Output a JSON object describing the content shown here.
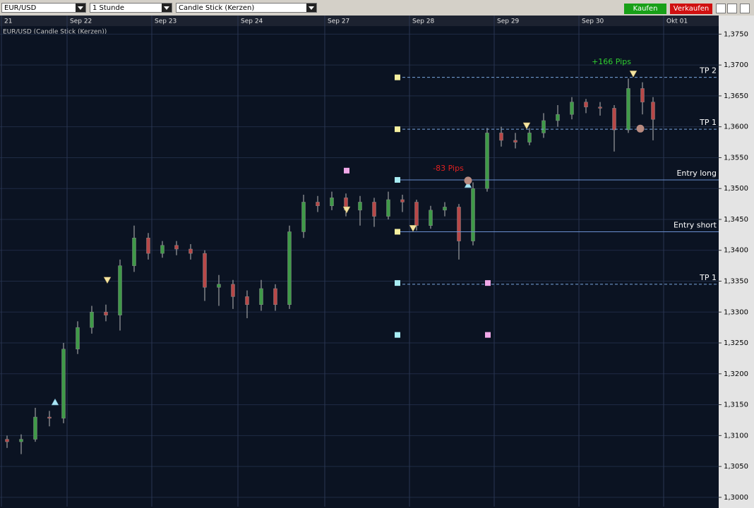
{
  "toolbar": {
    "symbol": "EUR/USD",
    "interval": "1 Stunde",
    "chart_style": "Candle Stick (Kerzen)",
    "buy": "Kaufen",
    "sell": "Verkaufen"
  },
  "chart_data": {
    "type": "candlestick",
    "title": "EUR/USD (Candle Stick (Kerzen))",
    "up_color": "#3f9a48",
    "down_color": "#b84848",
    "grid": true,
    "xlim": [
      0,
      203.6
    ],
    "ylim": [
      1.2985,
      1.3763
    ],
    "xticks": [
      {
        "value": 0.4,
        "label": "21"
      },
      {
        "value": 19,
        "label": "Sep 22"
      },
      {
        "value": 43,
        "label": "Sep 23"
      },
      {
        "value": 67.4,
        "label": "Sep 24"
      },
      {
        "value": 92,
        "label": "Sep 27"
      },
      {
        "value": 116,
        "label": "Sep 28"
      },
      {
        "value": 140,
        "label": "Sep 29"
      },
      {
        "value": 164,
        "label": "Sep 30"
      },
      {
        "value": 188,
        "label": "Okt 01"
      }
    ],
    "yticks": [
      {
        "value": 1.3,
        "label": "1,3000"
      },
      {
        "value": 1.305,
        "label": "1,3050"
      },
      {
        "value": 1.31,
        "label": "1,3100"
      },
      {
        "value": 1.315,
        "label": "1,3150"
      },
      {
        "value": 1.32,
        "label": "1,3200"
      },
      {
        "value": 1.325,
        "label": "1,3250"
      },
      {
        "value": 1.33,
        "label": "1,3300"
      },
      {
        "value": 1.335,
        "label": "1,3350"
      },
      {
        "value": 1.34,
        "label": "1,3400"
      },
      {
        "value": 1.345,
        "label": "1,3450"
      },
      {
        "value": 1.35,
        "label": "1,3500"
      },
      {
        "value": 1.355,
        "label": "1,3550"
      },
      {
        "value": 1.36,
        "label": "1,3600"
      },
      {
        "value": 1.365,
        "label": "1,3650"
      },
      {
        "value": 1.37,
        "label": "1,3700"
      },
      {
        "value": 1.375,
        "label": "1,3750"
      }
    ],
    "x": [
      2,
      6,
      10,
      14,
      18,
      22,
      26,
      30,
      34,
      38,
      42,
      46,
      50,
      54,
      58,
      62,
      66,
      70,
      74,
      78,
      82,
      86,
      90,
      94,
      98,
      102,
      106,
      110,
      114,
      118,
      122,
      126,
      130,
      134,
      138,
      142,
      146,
      150,
      154,
      158,
      162,
      166,
      170,
      174,
      178,
      182,
      185
    ],
    "open": [
      1.3094,
      1.309,
      1.3094,
      1.313,
      1.3128,
      1.324,
      1.3275,
      1.33,
      1.3295,
      1.3375,
      1.342,
      1.3395,
      1.3408,
      1.3402,
      1.3395,
      1.334,
      1.3345,
      1.3325,
      1.3312,
      1.3338,
      1.3312,
      1.343,
      1.3478,
      1.3472,
      1.3485,
      1.3465,
      1.3478,
      1.3455,
      1.3482,
      1.3478,
      1.344,
      1.3465,
      1.347,
      1.3415,
      1.35,
      1.359,
      1.3578,
      1.3575,
      1.359,
      1.361,
      1.362,
      1.364,
      1.3632,
      1.363,
      1.3595,
      1.3662,
      1.364
    ],
    "high": [
      1.31,
      1.3102,
      1.3145,
      1.314,
      1.325,
      1.3285,
      1.331,
      1.3312,
      1.3385,
      1.344,
      1.3428,
      1.3415,
      1.3415,
      1.341,
      1.34,
      1.336,
      1.3352,
      1.3335,
      1.3352,
      1.3345,
      1.344,
      1.349,
      1.3488,
      1.3495,
      1.3492,
      1.3488,
      1.3485,
      1.3495,
      1.349,
      1.3482,
      1.3472,
      1.3478,
      1.3475,
      1.351,
      1.3598,
      1.36,
      1.359,
      1.3598,
      1.3622,
      1.3635,
      1.3648,
      1.3645,
      1.364,
      1.3635,
      1.3678,
      1.3672,
      1.3648
    ],
    "low": [
      1.308,
      1.307,
      1.309,
      1.3115,
      1.312,
      1.3232,
      1.3265,
      1.3285,
      1.327,
      1.3365,
      1.3385,
      1.3388,
      1.3392,
      1.3385,
      1.3318,
      1.331,
      1.3305,
      1.329,
      1.3302,
      1.3302,
      1.3305,
      1.342,
      1.3462,
      1.3465,
      1.3455,
      1.344,
      1.3438,
      1.345,
      1.3462,
      1.3432,
      1.3435,
      1.3455,
      1.3385,
      1.3408,
      1.3495,
      1.3568,
      1.3565,
      1.357,
      1.3582,
      1.36,
      1.3612,
      1.3622,
      1.3618,
      1.356,
      1.359,
      1.362,
      1.3578
    ],
    "close": [
      1.309,
      1.3094,
      1.313,
      1.3128,
      1.324,
      1.3275,
      1.33,
      1.3295,
      1.3375,
      1.342,
      1.3395,
      1.3408,
      1.3402,
      1.3395,
      1.334,
      1.3345,
      1.3325,
      1.3312,
      1.3338,
      1.3312,
      1.343,
      1.3478,
      1.3472,
      1.3485,
      1.3465,
      1.3478,
      1.3455,
      1.3482,
      1.3478,
      1.344,
      1.3465,
      1.347,
      1.3415,
      1.35,
      1.359,
      1.3578,
      1.3575,
      1.359,
      1.361,
      1.362,
      1.364,
      1.3632,
      1.363,
      1.3595,
      1.3662,
      1.364,
      1.3612
    ],
    "levels": [
      {
        "label": "TP 2",
        "value": 1.368,
        "style": "dashed",
        "color": "#7aa6e0"
      },
      {
        "label": "TP 1",
        "value": 1.3596,
        "style": "dashed",
        "color": "#7aa6e0"
      },
      {
        "label": "Entry long",
        "value": 1.3514,
        "style": "solid",
        "color": "#6a8fd0"
      },
      {
        "label": "Entry short",
        "value": 1.343,
        "style": "solid",
        "color": "#6a8fd0"
      },
      {
        "label": "TP 1",
        "value": 1.3345,
        "style": "dashed",
        "color": "#7aa6e0"
      }
    ],
    "levels_start": 112.6,
    "markers": [
      {
        "shape": "square",
        "color": "#f6f0a0",
        "x": 112.6,
        "y": 1.368
      },
      {
        "shape": "square",
        "color": "#f6f0a0",
        "x": 112.6,
        "y": 1.3596
      },
      {
        "shape": "square",
        "color": "#f6f0a0",
        "x": 112.6,
        "y": 1.343
      },
      {
        "shape": "square",
        "color": "#a8ecf4",
        "x": 112.6,
        "y": 1.3514
      },
      {
        "shape": "square",
        "color": "#a8ecf4",
        "x": 112.6,
        "y": 1.3347
      },
      {
        "shape": "square",
        "color": "#a8ecf4",
        "x": 112.6,
        "y": 1.3263
      },
      {
        "shape": "square",
        "color": "#f0a8e8",
        "x": 98.2,
        "y": 1.3529
      },
      {
        "shape": "square",
        "color": "#f0a8e8",
        "x": 138.2,
        "y": 1.3347
      },
      {
        "shape": "square",
        "color": "#f0a8e8",
        "x": 138.2,
        "y": 1.3263
      },
      {
        "shape": "triangle-up",
        "color": "#a8e4f4",
        "x": 15.6,
        "y": 1.3154
      },
      {
        "shape": "triangle-down",
        "color": "#f4e4a0",
        "x": 30.4,
        "y": 1.3352
      },
      {
        "shape": "triangle-down",
        "color": "#f4e4a0",
        "x": 98.2,
        "y": 1.3466
      },
      {
        "shape": "triangle-down",
        "color": "#f4e4a0",
        "x": 117,
        "y": 1.3436
      },
      {
        "shape": "triangle-up",
        "color": "#a8e4f4",
        "x": 132.6,
        "y": 1.3506
      },
      {
        "shape": "triangle-down",
        "color": "#f4e4a0",
        "x": 149.2,
        "y": 1.3602
      },
      {
        "shape": "triangle-down",
        "color": "#f4e4a0",
        "x": 179.4,
        "y": 1.3686
      },
      {
        "shape": "circle",
        "color": "#b88a80",
        "x": 132.6,
        "y": 1.3513
      },
      {
        "shape": "circle",
        "color": "#b88a80",
        "x": 181.4,
        "y": 1.3597
      }
    ],
    "annotations": [
      {
        "text": "-83 Pips",
        "color": "#e02020",
        "x": 127,
        "y": 1.3532
      },
      {
        "text": "+166 Pips",
        "color": "#30d030",
        "x": 173.2,
        "y": 1.3705
      }
    ]
  }
}
